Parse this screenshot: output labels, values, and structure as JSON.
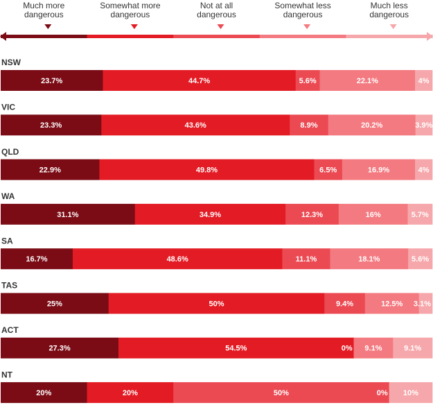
{
  "chart_data": {
    "type": "bar",
    "orientation": "horizontal",
    "stacked": true,
    "legend": [
      {
        "name": "Much more dangerous",
        "color": "#7B0C15"
      },
      {
        "name": "Somewhat more dangerous",
        "color": "#E31B24"
      },
      {
        "name": "Not at all dangerous",
        "color": "#EB4A53"
      },
      {
        "name": "Somewhat less dangerous",
        "color": "#F37A80"
      },
      {
        "name": "Much less dangerous",
        "color": "#F6A7AB"
      }
    ],
    "legend_display": [
      [
        "Much more",
        "dangerous"
      ],
      [
        "Somewhat more",
        "dangerous"
      ],
      [
        "Not at all",
        "dangerous"
      ],
      [
        "Somewhat less",
        "dangerous"
      ],
      [
        "Much less",
        "dangerous"
      ]
    ],
    "categories": [
      "NSW",
      "VIC",
      "QLD",
      "WA",
      "SA",
      "TAS",
      "ACT",
      "NT"
    ],
    "rows": [
      {
        "values": [
          23.7,
          44.7,
          5.6,
          22.1,
          4.0
        ],
        "labels": [
          "23.7%",
          "44.7%",
          "5.6%",
          "22.1%",
          "4%"
        ]
      },
      {
        "values": [
          23.3,
          43.6,
          8.9,
          20.2,
          3.9
        ],
        "labels": [
          "23.3%",
          "43.6%",
          "8.9%",
          "20.2%",
          "3.9%"
        ]
      },
      {
        "values": [
          22.9,
          49.8,
          6.5,
          16.9,
          4.0
        ],
        "labels": [
          "22.9%",
          "49.8%",
          "6.5%",
          "16.9%",
          "4%"
        ]
      },
      {
        "values": [
          31.1,
          34.9,
          12.3,
          16.0,
          5.7
        ],
        "labels": [
          "31.1%",
          "34.9%",
          "12.3%",
          "16%",
          "5.7%"
        ]
      },
      {
        "values": [
          16.7,
          48.6,
          11.1,
          18.1,
          5.6
        ],
        "labels": [
          "16.7%",
          "48.6%",
          "11.1%",
          "18.1%",
          "5.6%"
        ]
      },
      {
        "values": [
          25.0,
          50.0,
          9.4,
          12.5,
          3.1
        ],
        "labels": [
          "25%",
          "50%",
          "9.4%",
          "12.5%",
          "3.1%"
        ]
      },
      {
        "values": [
          27.3,
          54.5,
          0.0,
          9.1,
          9.1
        ],
        "labels": [
          "27.3%",
          "54.5%",
          "0%",
          "9.1%",
          "9.1%"
        ]
      },
      {
        "values": [
          20.0,
          20.0,
          50.0,
          0.0,
          10.0
        ],
        "labels": [
          "20%",
          "20%",
          "50%",
          "0%",
          "10%"
        ]
      }
    ],
    "xlim": [
      0,
      100
    ],
    "grid": false,
    "legend_placement": "top"
  }
}
